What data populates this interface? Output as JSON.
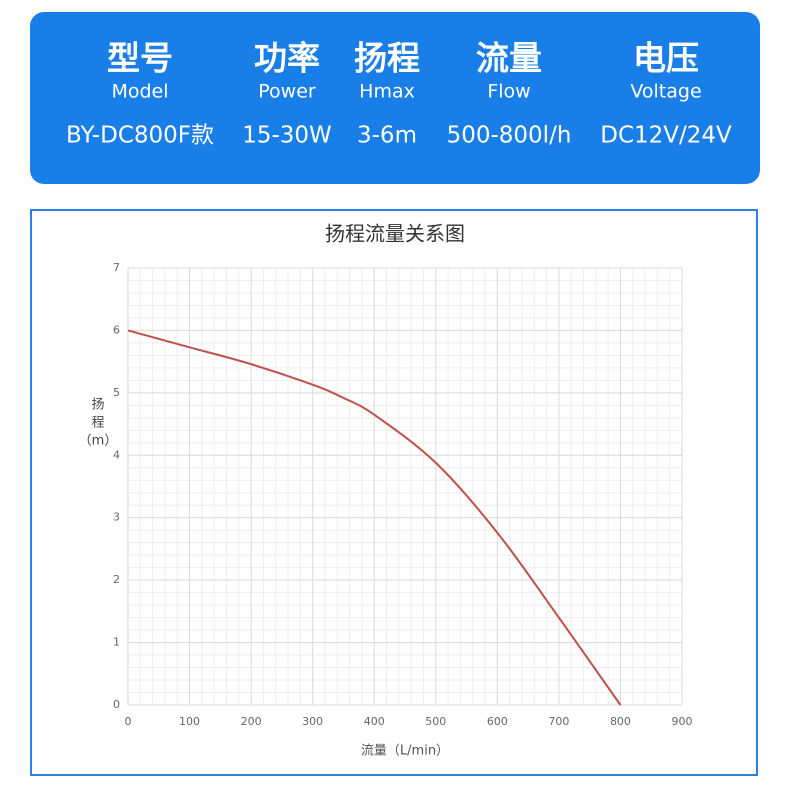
{
  "header": {
    "columns": [
      {
        "cn": "型号",
        "en": "Model",
        "value": "BY-DC800F款"
      },
      {
        "cn": "功率",
        "en": "Power",
        "value": "15-30W"
      },
      {
        "cn": "扬程",
        "en": "Hmax",
        "value": "3-6m"
      },
      {
        "cn": "流量",
        "en": "Flow",
        "value": "500-800l/h"
      },
      {
        "cn": "电压",
        "en": "Voltage",
        "value": "DC12V/24V"
      }
    ]
  },
  "chart_data": {
    "type": "line",
    "title": "扬程流量关系图",
    "x_label": "流量（L/min）",
    "y_label": [
      "扬",
      "程",
      "（m）"
    ],
    "x": [
      0,
      100,
      200,
      300,
      350,
      400,
      500,
      600,
      700,
      800
    ],
    "values": [
      6.0,
      5.73,
      5.46,
      5.13,
      4.92,
      4.65,
      3.88,
      2.76,
      1.4,
      0
    ],
    "color": "#c0504d",
    "xlim": [
      0,
      900
    ],
    "xticks": [
      0,
      100,
      200,
      300,
      400,
      500,
      600,
      700,
      800,
      900
    ],
    "ylim": [
      0,
      7
    ],
    "yticks": [
      0,
      1,
      2,
      3,
      4,
      5,
      6,
      7
    ],
    "grid": true
  }
}
